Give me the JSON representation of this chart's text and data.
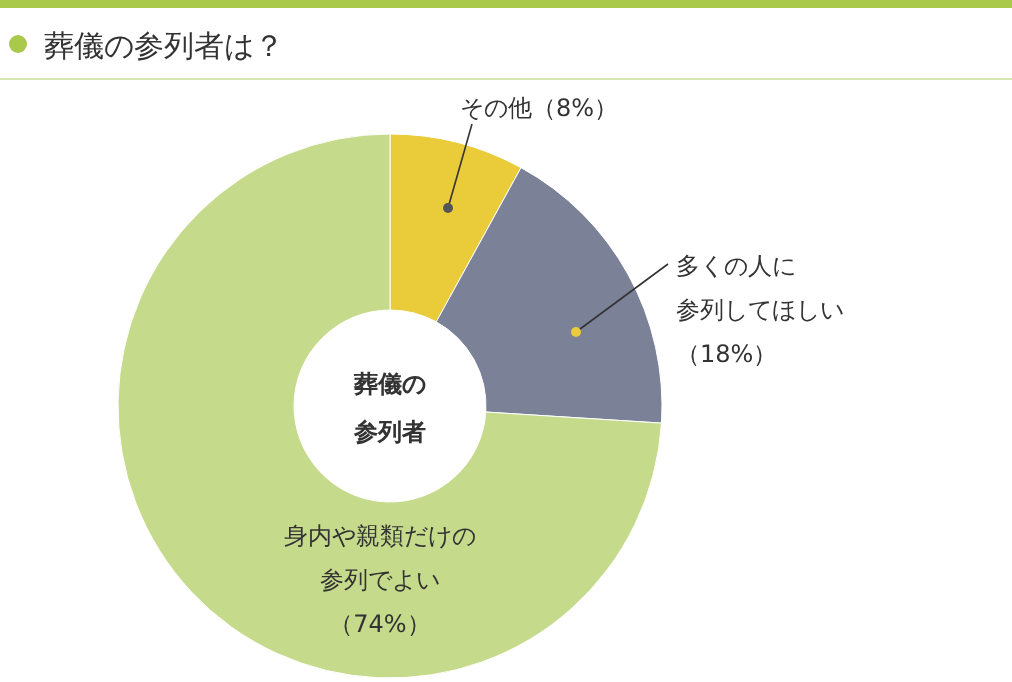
{
  "chart_data": {
    "type": "donut",
    "title": "葬儀の参列者は？",
    "categories": [
      "その他",
      "多くの人に参列してほしい",
      "身内や親類だけの参列でよい"
    ],
    "values": [
      8,
      18,
      74
    ],
    "value_labels": [
      "（8%）",
      "（18%）",
      "（74%）"
    ],
    "colors": [
      "#eacb3a",
      "#7b8298",
      "#c5da8a"
    ],
    "annotations": [
      "葬儀の参列者"
    ]
  }
}
